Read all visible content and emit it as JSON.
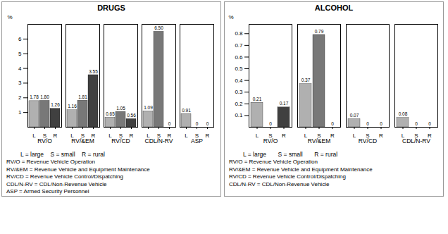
{
  "chart_data": [
    {
      "type": "bar",
      "title": "DRUGS",
      "categories": [
        "RV/O",
        "RV/&EM",
        "RV/CD",
        "CDL/N-RV",
        "ASP"
      ],
      "series": [
        {
          "name": "L",
          "color": "#B0B0B0",
          "values": [
            1.78,
            1.16,
            0.65,
            1.09,
            0.91
          ],
          "value_labels": [
            "1.78",
            "1.16",
            "0.65",
            "1.09",
            "0.91"
          ]
        },
        {
          "name": "S",
          "color": "#787878",
          "values": [
            1.8,
            1.81,
            1.05,
            6.5,
            0.0
          ],
          "value_labels": [
            "1.80",
            "1.81",
            "1.05",
            "6.50",
            "0"
          ]
        },
        {
          "name": "R",
          "color": "#404040",
          "values": [
            1.26,
            3.55,
            0.56,
            0.0,
            0.0
          ],
          "value_labels": [
            "1.26",
            "3.55",
            "0.56",
            "0",
            "0"
          ]
        }
      ],
      "ylim": [
        0,
        7.0
      ],
      "yticks": [
        1,
        2,
        3,
        4,
        5,
        6
      ],
      "ylabel": "%",
      "data_labels": true,
      "annotations": [
        "L = large    S = small    R = rural",
        "RV/O = Revenue Vehicle Operation",
        "RV/&EM = Revenue Vehicle and Equipment Maintenance",
        "RV/CD = Revenue Vehicle Control/Dispatching",
        "CDL/N-RV = CDL/Non-Revenue Vehicle",
        "ASP = Armed Security Personnel"
      ]
    },
    {
      "type": "bar",
      "title": "ALCOHOL",
      "categories": [
        "RV/O",
        "RV/&EM",
        "RV/CD",
        "CDL/N-RV"
      ],
      "series": [
        {
          "name": "L",
          "color": "#B0B0B0",
          "values": [
            0.21,
            0.37,
            0.07,
            0.08
          ],
          "value_labels": [
            "0.21",
            "0.37",
            "0.07",
            "0.08"
          ]
        },
        {
          "name": "S",
          "color": "#787878",
          "values": [
            0.0,
            0.79,
            0.0,
            0.0
          ],
          "value_labels": [
            "0",
            "0.79",
            "0",
            "0"
          ]
        },
        {
          "name": "R",
          "color": "#404040",
          "values": [
            0.17,
            0.0,
            0.0,
            0.0
          ],
          "value_labels": [
            "0.17",
            "0",
            "0",
            "0"
          ]
        }
      ],
      "ylim": [
        0,
        0.88
      ],
      "yticks": [
        0.1,
        0.2,
        0.3,
        0.4,
        0.5,
        0.6,
        0.7,
        0.8
      ],
      "ylabel": "%",
      "data_labels": true,
      "annotations": [
        "L = large       S = small       R = rural",
        "RV/O = Revenue Vehicle Operation",
        "RV/&EM = Revenue Vehicle and Equipment Maintenance",
        "RV/CD = Revenue Vehicle Control/Dispatching",
        "CDL/N-RV = CDL/Non-Revenue Vehicle"
      ]
    }
  ]
}
